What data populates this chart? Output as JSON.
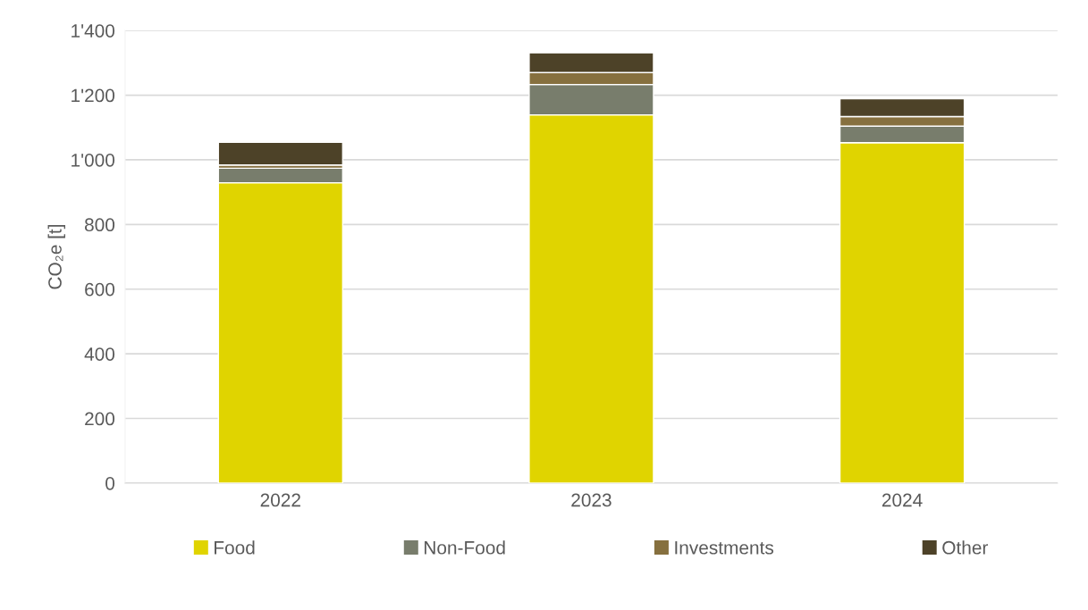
{
  "chart_data": {
    "type": "bar",
    "stacked": true,
    "ylabel": "CO₂e [t]",
    "categories": [
      "2022",
      "2023",
      "2024"
    ],
    "series": [
      {
        "name": "Food",
        "color": "#e0d400",
        "values": [
          929,
          1139,
          1053
        ]
      },
      {
        "name": "Non-Food",
        "color": "#787d6c",
        "values": [
          45,
          94,
          51
        ]
      },
      {
        "name": "Investments",
        "color": "#86703f",
        "values": [
          10,
          37,
          30
        ]
      },
      {
        "name": "Other",
        "color": "#4d4228",
        "values": [
          70,
          61,
          55
        ]
      }
    ],
    "ylim": [
      0,
      1400
    ],
    "yticks": [
      0,
      200,
      400,
      600,
      800,
      {
        "value": 1000,
        "label": "1'000"
      },
      {
        "value": 1200,
        "label": "1'200"
      },
      {
        "value": 1400,
        "label": "1'400"
      }
    ],
    "grid": "y",
    "legend": "bottom"
  }
}
